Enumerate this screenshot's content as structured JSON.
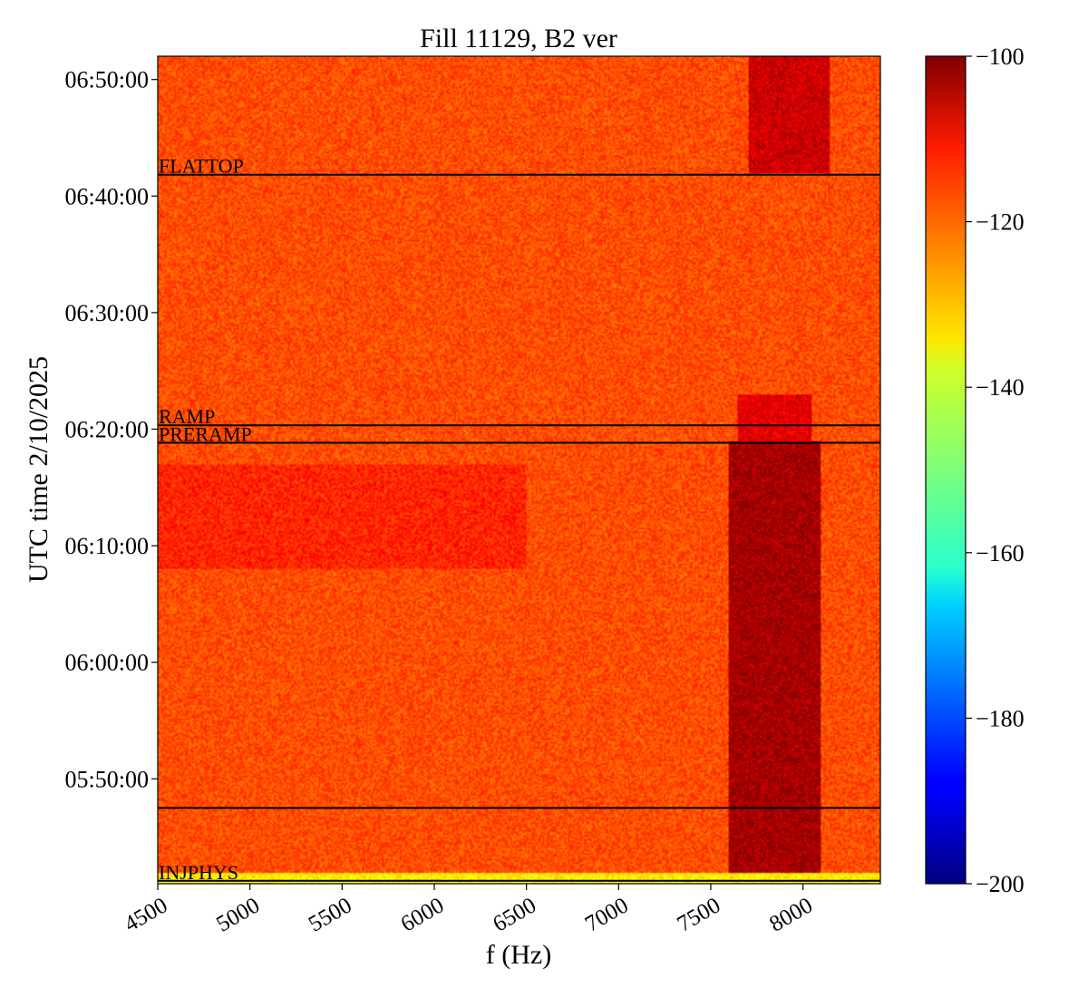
{
  "chart_data": {
    "type": "heatmap",
    "title": "Fill 11129, B2 ver",
    "xlabel": "f (Hz)",
    "ylabel": "UTC time 2/10/2025",
    "xlim": [
      4500,
      8420
    ],
    "x_ticks": [
      4500,
      5000,
      5500,
      6000,
      6500,
      7000,
      7500,
      8000
    ],
    "ylim": [
      "05:41:00",
      "06:52:00"
    ],
    "y_ticks": [
      "05:50:00",
      "06:00:00",
      "06:10:00",
      "06:20:00",
      "06:30:00",
      "06:40:00",
      "06:50:00"
    ],
    "y_tick_labels": [
      "05:50:00",
      "06:00:00",
      "06:10:00",
      "06:20:00",
      "06:30:00",
      "06:40:00",
      "06:50:00"
    ],
    "colorbar": {
      "colormap": "jet",
      "range": [
        -200,
        -100
      ],
      "ticks": [
        -100,
        -120,
        -140,
        -160,
        -180,
        -200
      ],
      "tick_labels": [
        "−100",
        "−120",
        "−140",
        "−160",
        "−180",
        "−200"
      ]
    },
    "background_level_db": -120,
    "features": [
      {
        "kind": "band",
        "x_range": [
          7600,
          8100
        ],
        "y_range": [
          "05:42:00",
          "06:19:00"
        ],
        "level_db": -104
      },
      {
        "kind": "band",
        "x_range": [
          7650,
          8050
        ],
        "y_range": [
          "06:19:00",
          "06:23:00"
        ],
        "level_db": -110
      },
      {
        "kind": "band",
        "x_range": [
          7700,
          8150
        ],
        "y_range": [
          "06:42:00",
          "06:52:00"
        ],
        "level_db": -108
      },
      {
        "kind": "band",
        "x_range": [
          4500,
          6500
        ],
        "y_range": [
          "06:08:00",
          "06:17:00"
        ],
        "level_db": -116
      },
      {
        "kind": "band",
        "x_range": [
          4500,
          8420
        ],
        "y_range": [
          "05:41:00",
          "05:42:00"
        ],
        "level_db": -136
      }
    ],
    "markers": [
      {
        "label": "FLATTOP",
        "time": "06:41:50"
      },
      {
        "label": "RAMP",
        "time": "06:20:20"
      },
      {
        "label": "PRERAMP",
        "time": "06:18:50"
      },
      {
        "label": "",
        "time": "05:47:30"
      },
      {
        "label": "INJPHYS",
        "time": "05:41:15"
      }
    ]
  }
}
